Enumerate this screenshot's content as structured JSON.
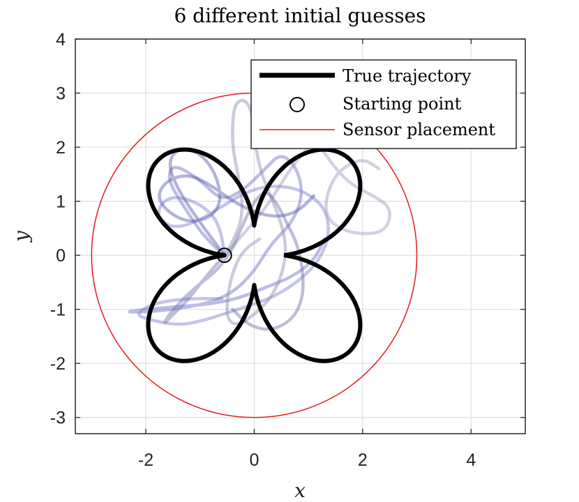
{
  "chart_data": {
    "type": "line",
    "title": "6 different initial guesses",
    "xlabel": "x",
    "ylabel": "y",
    "xlim": [
      -3.3,
      5
    ],
    "ylim": [
      -3.3,
      4
    ],
    "xticks": [
      -2,
      0,
      2,
      4
    ],
    "yticks": [
      -3,
      -2,
      -1,
      0,
      1,
      2,
      3,
      4
    ],
    "xtick_labels": [
      "-2",
      "0",
      "2",
      "4"
    ],
    "ytick_labels": [
      "-3",
      "-2",
      "-1",
      "0",
      "1",
      "2",
      "3",
      "4"
    ],
    "grid": true,
    "legend_position": "top-right",
    "legend": [
      {
        "label": "True trajectory",
        "style": "thick-line",
        "color": "#000000"
      },
      {
        "label": "Starting point",
        "style": "circle-marker",
        "color": "#000000"
      },
      {
        "label": "Sensor placement",
        "style": "thin-line",
        "color": "#e41a1c"
      }
    ],
    "sensor_circle": {
      "center": [
        0,
        0
      ],
      "radius": 3,
      "color": "#e41a1c"
    },
    "starting_point": [
      -0.55,
      0
    ],
    "true_trajectory": {
      "description_formula": "r(t) = 0.55 + 1.95*|sin(2t)|, x = r cos t, y = r sin t",
      "color": "#000000"
    },
    "guesses": [
      {
        "color": "#6b6bc8",
        "points": [
          [
            -0.55,
            0
          ],
          [
            -0.9,
            0.3
          ],
          [
            -1.3,
            0.9
          ],
          [
            -1.6,
            1.4
          ],
          [
            -1.5,
            1.7
          ],
          [
            -1.0,
            1.4
          ],
          [
            -0.6,
            1.0
          ],
          [
            -0.2,
            1.2
          ],
          [
            0.2,
            1.6
          ],
          [
            0.5,
            1.9
          ],
          [
            0.8,
            1.6
          ],
          [
            0.9,
            1.1
          ],
          [
            0.7,
            0.6
          ],
          [
            0.3,
            0.2
          ],
          [
            0.0,
            -0.3
          ],
          [
            -0.4,
            -0.7
          ],
          [
            -0.9,
            -0.9
          ],
          [
            -1.5,
            -1.0
          ],
          [
            -2.0,
            -1.05
          ],
          [
            -2.4,
            -1.05
          ],
          [
            -2.0,
            -1.0
          ],
          [
            -1.4,
            -0.95
          ],
          [
            -0.8,
            -0.9
          ],
          [
            -0.3,
            -0.8
          ],
          [
            0.2,
            -0.6
          ],
          [
            0.7,
            -0.4
          ],
          [
            1.1,
            -0.1
          ],
          [
            1.3,
            0.3
          ]
        ]
      },
      {
        "color": "#7c7cd0",
        "points": [
          [
            -0.55,
            0
          ],
          [
            -0.6,
            0.5
          ],
          [
            -0.9,
            0.9
          ],
          [
            -1.4,
            1.1
          ],
          [
            -1.7,
            1.0
          ],
          [
            -1.8,
            0.7
          ],
          [
            -1.5,
            0.5
          ],
          [
            -1.1,
            0.6
          ],
          [
            -0.6,
            0.9
          ],
          [
            -0.1,
            1.2
          ],
          [
            0.4,
            1.3
          ],
          [
            0.9,
            1.2
          ],
          [
            1.3,
            0.9
          ],
          [
            1.4,
            0.4
          ],
          [
            1.2,
            -0.1
          ],
          [
            0.8,
            -0.5
          ],
          [
            0.3,
            -0.8
          ],
          [
            -0.3,
            -1.0
          ],
          [
            -0.9,
            -1.2
          ],
          [
            -1.4,
            -1.3
          ],
          [
            -1.9,
            -1.2
          ],
          [
            -2.2,
            -1.1
          ],
          [
            -1.9,
            -0.9
          ],
          [
            -1.3,
            -0.8
          ],
          [
            -0.6,
            -0.8
          ]
        ]
      },
      {
        "color": "#8c8cb0",
        "points": [
          [
            -0.55,
            0
          ],
          [
            -0.3,
            0.4
          ],
          [
            -0.2,
            0.9
          ],
          [
            -0.3,
            1.5
          ],
          [
            -0.4,
            2.0
          ],
          [
            -0.4,
            2.5
          ],
          [
            -0.35,
            2.8
          ],
          [
            -0.2,
            2.9
          ],
          [
            -0.05,
            2.7
          ],
          [
            0.0,
            2.2
          ],
          [
            0.1,
            1.6
          ],
          [
            0.3,
            1.1
          ],
          [
            0.5,
            0.6
          ],
          [
            0.6,
            0.1
          ],
          [
            0.5,
            -0.4
          ],
          [
            0.3,
            -0.8
          ],
          [
            0.0,
            -1.1
          ],
          [
            -0.3,
            -1.3
          ],
          [
            -0.5,
            -1.2
          ],
          [
            -0.5,
            -0.8
          ],
          [
            -0.4,
            -0.3
          ],
          [
            -0.2,
            0.1
          ],
          [
            0.1,
            0.3
          ]
        ]
      },
      {
        "color": "#9a9abf",
        "points": [
          [
            -0.55,
            0
          ],
          [
            -0.1,
            0.5
          ],
          [
            0.3,
            1.0
          ],
          [
            0.6,
            1.5
          ],
          [
            0.9,
            1.9
          ],
          [
            1.1,
            2.1
          ],
          [
            1.3,
            1.9
          ],
          [
            1.5,
            1.6
          ],
          [
            1.8,
            1.3
          ],
          [
            2.2,
            1.1
          ],
          [
            2.5,
            0.9
          ],
          [
            2.5,
            0.6
          ],
          [
            2.3,
            0.4
          ],
          [
            1.8,
            0.4
          ],
          [
            1.4,
            0.6
          ],
          [
            1.3,
            0.9
          ],
          [
            1.4,
            1.3
          ],
          [
            1.6,
            1.6
          ],
          [
            2.0,
            1.8
          ],
          [
            2.3,
            1.6
          ]
        ]
      },
      {
        "color": "#6e6ea8",
        "points": [
          [
            -0.55,
            0
          ],
          [
            -0.9,
            -0.4
          ],
          [
            -1.2,
            -0.8
          ],
          [
            -1.5,
            -1.1
          ],
          [
            -1.7,
            -1.3
          ],
          [
            -1.5,
            -1.0
          ],
          [
            -1.1,
            -0.6
          ],
          [
            -0.7,
            -0.3
          ],
          [
            -0.4,
            0.1
          ],
          [
            -0.2,
            0.6
          ],
          [
            0.0,
            1.0
          ],
          [
            0.2,
            1.2
          ],
          [
            0.4,
            1.0
          ],
          [
            0.6,
            0.6
          ],
          [
            0.8,
            0.2
          ],
          [
            0.9,
            -0.3
          ],
          [
            0.9,
            -0.8
          ],
          [
            0.7,
            -1.2
          ],
          [
            0.3,
            -1.4
          ],
          [
            -0.1,
            -1.3
          ],
          [
            -0.4,
            -1.0
          ]
        ]
      },
      {
        "color": "#5656a8",
        "points": [
          [
            -0.55,
            0
          ],
          [
            -1.0,
            0.6
          ],
          [
            -1.4,
            1.2
          ],
          [
            -1.6,
            1.7
          ],
          [
            -1.4,
            2.0
          ],
          [
            -1.0,
            1.9
          ],
          [
            -0.7,
            1.5
          ],
          [
            -0.6,
            1.0
          ],
          [
            -0.8,
            0.7
          ],
          [
            -1.2,
            0.6
          ],
          [
            -1.6,
            0.8
          ],
          [
            -1.8,
            1.1
          ],
          [
            -1.6,
            1.4
          ],
          [
            -1.2,
            1.5
          ],
          [
            -0.8,
            1.3
          ],
          [
            -0.4,
            1.0
          ],
          [
            0.0,
            0.8
          ],
          [
            0.4,
            0.7
          ],
          [
            0.8,
            0.8
          ],
          [
            1.1,
            1.1
          ]
        ]
      }
    ]
  }
}
